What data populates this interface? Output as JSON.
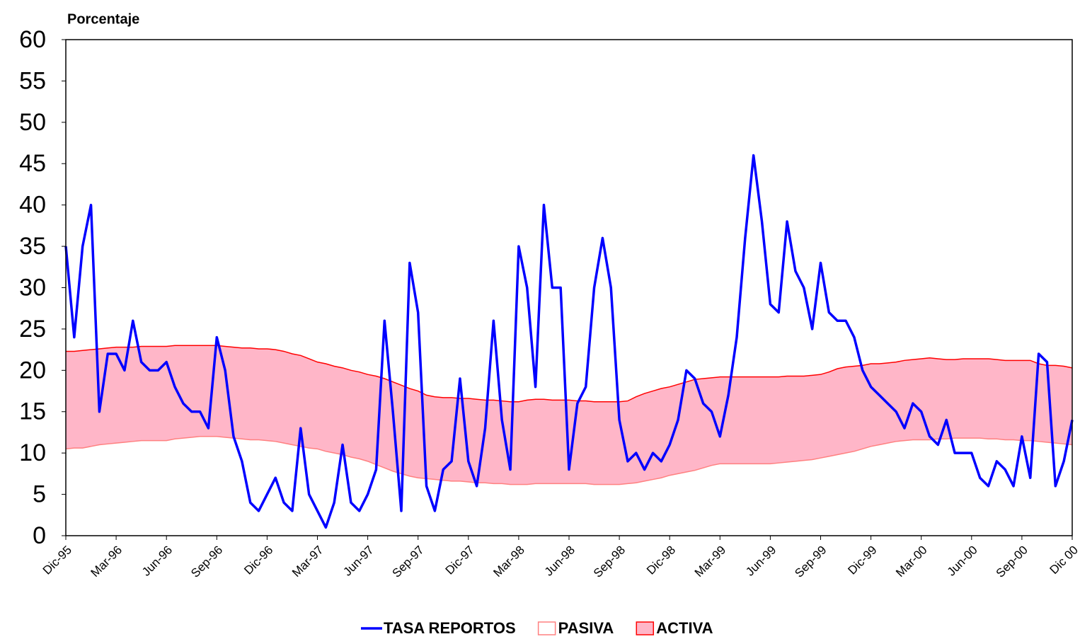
{
  "chart_data": {
    "type": "line",
    "y_label": "Porcentaje",
    "categories": [
      "Dic-95",
      null,
      null,
      null,
      null,
      null,
      "Mar-96",
      null,
      null,
      null,
      null,
      null,
      "Jun-96",
      null,
      null,
      null,
      null,
      null,
      "Sep-96",
      null,
      null,
      null,
      null,
      null,
      "Dic-96",
      null,
      null,
      null,
      null,
      null,
      "Mar-97",
      null,
      null,
      null,
      null,
      null,
      "Jun-97",
      null,
      null,
      null,
      null,
      null,
      "Sep-97",
      null,
      null,
      null,
      null,
      null,
      "Dic-97",
      null,
      null,
      null,
      null,
      null,
      "Mar-98",
      null,
      null,
      null,
      null,
      null,
      "Jun-98",
      null,
      null,
      null,
      null,
      null,
      "Sep-98",
      null,
      null,
      null,
      null,
      null,
      "Dic-98",
      null,
      null,
      null,
      null,
      null,
      "Mar-99",
      null,
      null,
      null,
      null,
      null,
      "Jun-99",
      null,
      null,
      null,
      null,
      null,
      "Sep-99",
      null,
      null,
      null,
      null,
      null,
      "Dic-99",
      null,
      null,
      null,
      null,
      null,
      "Mar-00",
      null,
      null,
      null,
      null,
      null,
      "Jun-00",
      null,
      null,
      null,
      null,
      null,
      "Sep-00",
      null,
      null,
      null,
      null,
      null,
      "Dic 00"
    ],
    "series": [
      {
        "name": "TASA REPORTOS",
        "style": "line",
        "color": "#0000ff",
        "values": [
          35,
          24,
          35,
          40,
          15,
          22,
          22,
          20,
          26,
          21,
          20,
          20,
          21,
          18,
          16,
          15,
          15,
          13,
          24,
          20,
          12,
          9,
          4,
          3,
          5,
          7,
          4,
          3,
          13,
          5,
          3,
          1,
          4,
          11,
          4,
          3,
          5,
          8,
          26,
          15,
          3,
          33,
          27,
          6,
          3,
          8,
          9,
          19,
          9,
          6,
          13,
          26,
          14,
          8,
          35,
          30,
          18,
          40,
          30,
          30,
          8,
          16,
          18,
          30,
          36,
          30,
          14,
          9,
          10,
          8,
          10,
          9,
          11,
          14,
          20,
          19,
          16,
          15,
          12,
          17,
          24,
          36,
          46,
          38,
          28,
          27,
          38,
          32,
          30,
          25,
          33,
          27,
          26,
          26,
          24,
          20,
          18,
          17,
          16,
          15,
          13,
          16,
          15,
          12,
          11,
          14,
          10,
          10,
          10,
          7,
          6,
          9,
          8,
          6,
          12,
          7,
          22,
          21,
          6,
          9,
          14
        ]
      },
      {
        "name": "PASIVA",
        "style": "area",
        "color": "#ffffff",
        "edge": "#ff8080",
        "values": [
          10.5,
          10.6,
          10.6,
          10.8,
          11.0,
          11.1,
          11.2,
          11.3,
          11.4,
          11.5,
          11.5,
          11.5,
          11.5,
          11.7,
          11.8,
          11.9,
          12.0,
          12.0,
          12.0,
          11.9,
          11.8,
          11.7,
          11.6,
          11.6,
          11.5,
          11.4,
          11.2,
          11.0,
          10.8,
          10.6,
          10.5,
          10.2,
          10.0,
          9.8,
          9.5,
          9.3,
          9.0,
          8.6,
          8.2,
          7.8,
          7.5,
          7.2,
          7.0,
          6.9,
          6.8,
          6.7,
          6.6,
          6.6,
          6.5,
          6.4,
          6.4,
          6.3,
          6.3,
          6.2,
          6.2,
          6.2,
          6.3,
          6.3,
          6.3,
          6.3,
          6.3,
          6.3,
          6.3,
          6.2,
          6.2,
          6.2,
          6.2,
          6.3,
          6.4,
          6.6,
          6.8,
          7.0,
          7.3,
          7.5,
          7.7,
          7.9,
          8.2,
          8.5,
          8.7,
          8.7,
          8.7,
          8.7,
          8.7,
          8.7,
          8.7,
          8.8,
          8.9,
          9.0,
          9.1,
          9.2,
          9.4,
          9.6,
          9.8,
          10.0,
          10.2,
          10.5,
          10.8,
          11.0,
          11.2,
          11.4,
          11.5,
          11.6,
          11.6,
          11.6,
          11.7,
          11.7,
          11.8,
          11.8,
          11.8,
          11.8,
          11.7,
          11.7,
          11.6,
          11.6,
          11.5,
          11.5,
          11.4,
          11.3,
          11.2,
          11.1,
          11.0
        ]
      },
      {
        "name": "ACTIVA",
        "style": "area",
        "color": "#ffb6c8",
        "edge": "#ff0000",
        "values": [
          22.3,
          22.3,
          22.4,
          22.5,
          22.6,
          22.7,
          22.8,
          22.8,
          22.8,
          22.9,
          22.9,
          22.9,
          22.9,
          23.0,
          23.0,
          23.0,
          23.0,
          23.0,
          23.0,
          22.9,
          22.8,
          22.7,
          22.7,
          22.6,
          22.6,
          22.5,
          22.3,
          22.0,
          21.8,
          21.4,
          21.0,
          20.8,
          20.5,
          20.3,
          20.0,
          19.8,
          19.5,
          19.3,
          19.0,
          18.6,
          18.2,
          17.8,
          17.5,
          17.0,
          16.8,
          16.7,
          16.7,
          16.6,
          16.6,
          16.5,
          16.4,
          16.4,
          16.3,
          16.2,
          16.2,
          16.4,
          16.5,
          16.5,
          16.4,
          16.4,
          16.4,
          16.3,
          16.3,
          16.2,
          16.2,
          16.2,
          16.2,
          16.3,
          16.8,
          17.2,
          17.5,
          17.8,
          18.0,
          18.3,
          18.6,
          18.9,
          19.0,
          19.1,
          19.2,
          19.2,
          19.2,
          19.2,
          19.2,
          19.2,
          19.2,
          19.2,
          19.3,
          19.3,
          19.3,
          19.4,
          19.5,
          19.8,
          20.2,
          20.4,
          20.5,
          20.6,
          20.8,
          20.8,
          20.9,
          21.0,
          21.2,
          21.3,
          21.4,
          21.5,
          21.4,
          21.3,
          21.3,
          21.4,
          21.4,
          21.4,
          21.4,
          21.3,
          21.2,
          21.2,
          21.2,
          21.2,
          20.8,
          20.6,
          20.6,
          20.5,
          20.3
        ]
      }
    ],
    "ylim": [
      0,
      60
    ],
    "yticks": [
      0,
      5,
      10,
      15,
      20,
      25,
      30,
      35,
      40,
      45,
      50,
      55,
      60
    ],
    "grid": false
  }
}
